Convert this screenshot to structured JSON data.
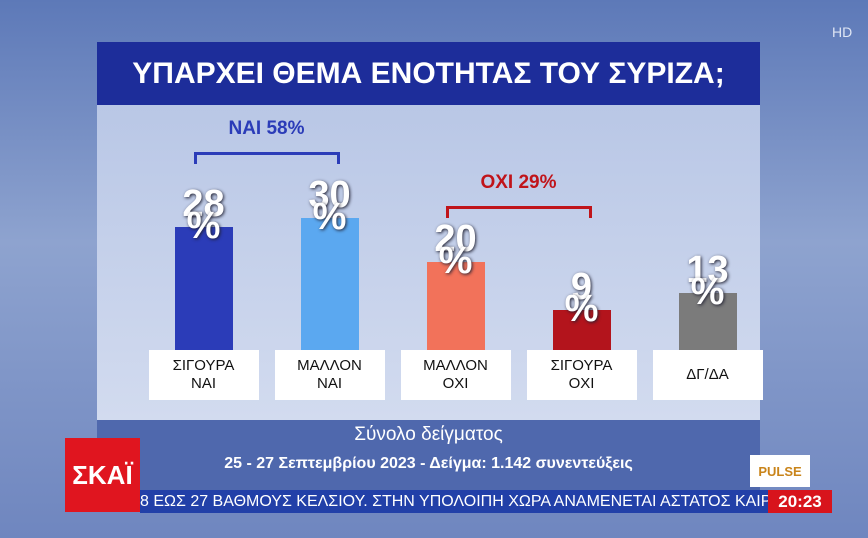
{
  "chart_data": {
    "type": "bar",
    "title": "ΥΠΑΡΧΕΙ ΘΕΜΑ ΕΝΟΤΗΤΑΣ ΤΟΥ ΣΥΡΙΖΑ;",
    "categories": [
      "ΣΙΓΟΥΡΑ\nΝΑΙ",
      "ΜΑΛΛΟΝ\nΝΑΙ",
      "ΜΑΛΛΟΝ\nΟΧΙ",
      "ΣΙΓΟΥΡΑ\nΟΧΙ",
      "ΔΓ/ΔΑ"
    ],
    "values": [
      28,
      30,
      20,
      9,
      13
    ],
    "value_labels": [
      "28\n%",
      "30\n%",
      "20\n%",
      "9\n%",
      "13\n%"
    ],
    "colors": [
      "#2b3cb8",
      "#5ba8f0",
      "#f2725a",
      "#b3141c",
      "#7b7b7b"
    ],
    "annotations": [
      {
        "text": "ΝΑΙ 58%",
        "color": "#2b3cb8"
      },
      {
        "text": "ΟΧΙ 29%",
        "color": "#c0141a"
      }
    ],
    "subtitle": "Σύνολο δείγματος",
    "note": "25 - 27 Σεπτεμβρίου 2023 - Δείγμα: 1.142 συνεντεύξεις"
  },
  "broadcast": {
    "channel": "ΣΚΑΪ",
    "ticker": "8 ΕΩΣ 27 ΒΑΘΜΟΥΣ ΚΕΛΣΙΟΥ. ΣΤΗΝ ΥΠΟΛΟΙΠΗ ΧΩΡΑ ΑΝΑΜΕΝΕΤΑΙ ΑΣΤΑΤΟΣ ΚΑΙΡΟΣ ΜΕ ΤΟΠ",
    "time": "20:23",
    "pollster": "PULSE",
    "quality": "HD"
  }
}
